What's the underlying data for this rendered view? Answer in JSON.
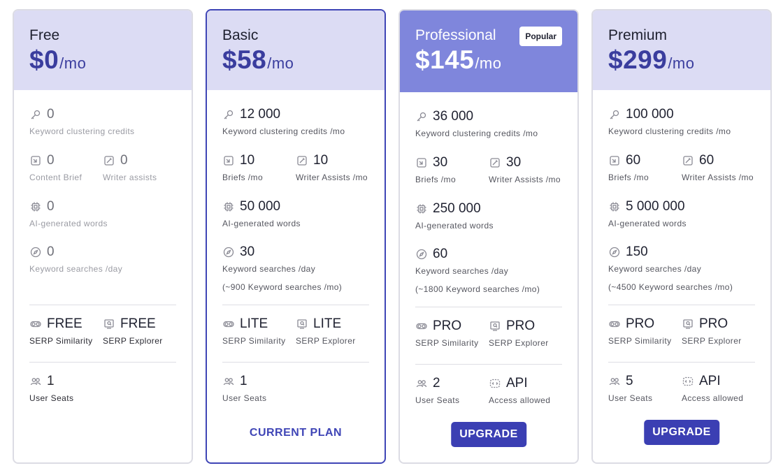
{
  "plans": [
    {
      "name": "Free",
      "price": "$0",
      "per": "/mo",
      "clustering": {
        "value": "0",
        "label": "Keyword clustering credits"
      },
      "briefs": {
        "value": "0",
        "label": "Content Brief"
      },
      "assists": {
        "value": "0",
        "label": "Writer assists"
      },
      "words": {
        "value": "0",
        "label": "AI-generated words"
      },
      "searches": {
        "value": "0",
        "label": "Keyword searches /day"
      },
      "serp_similarity": {
        "value": "FREE",
        "label": "SERP Similarity"
      },
      "serp_explorer": {
        "value": "FREE",
        "label": "SERP Explorer"
      },
      "seats": {
        "value": "1",
        "label": "User Seats"
      }
    },
    {
      "name": "Basic",
      "price": "$58",
      "per": "/mo",
      "clustering": {
        "value": "12 000",
        "label": "Keyword clustering credits /mo"
      },
      "briefs": {
        "value": "10",
        "label": "Briefs /mo"
      },
      "assists": {
        "value": "10",
        "label": "Writer Assists /mo"
      },
      "words": {
        "value": "50 000",
        "label": "AI-generated words"
      },
      "searches": {
        "value": "30",
        "label": "Keyword searches /day",
        "note": "(~900 Keyword searches /mo)"
      },
      "serp_similarity": {
        "value": "LITE",
        "label": "SERP Similarity"
      },
      "serp_explorer": {
        "value": "LITE",
        "label": "SERP Explorer"
      },
      "seats": {
        "value": "1",
        "label": "User Seats"
      },
      "cta": "CURRENT PLAN"
    },
    {
      "name": "Professional",
      "price": "$145",
      "per": "/mo",
      "badge": "Popular",
      "clustering": {
        "value": "36 000",
        "label": "Keyword clustering credits /mo"
      },
      "briefs": {
        "value": "30",
        "label": "Briefs /mo"
      },
      "assists": {
        "value": "30",
        "label": "Writer Assists /mo"
      },
      "words": {
        "value": "250 000",
        "label": "AI-generated words"
      },
      "searches": {
        "value": "60",
        "label": "Keyword searches /day",
        "note": "(~1800 Keyword searches /mo)"
      },
      "serp_similarity": {
        "value": "PRO",
        "label": "SERP Similarity"
      },
      "serp_explorer": {
        "value": "PRO",
        "label": "SERP Explorer"
      },
      "seats": {
        "value": "2",
        "label": "User Seats"
      },
      "api": {
        "value": "API",
        "label": "Access allowed"
      },
      "cta": "UPGRADE"
    },
    {
      "name": "Premium",
      "price": "$299",
      "per": "/mo",
      "clustering": {
        "value": "100 000",
        "label": "Keyword clustering credits /mo"
      },
      "briefs": {
        "value": "60",
        "label": "Briefs /mo"
      },
      "assists": {
        "value": "60",
        "label": "Writer Assists /mo"
      },
      "words": {
        "value": "5 000 000",
        "label": "AI-generated words"
      },
      "searches": {
        "value": "150",
        "label": "Keyword searches /day",
        "note": "(~4500 Keyword searches /mo)"
      },
      "serp_similarity": {
        "value": "PRO",
        "label": "SERP Similarity"
      },
      "serp_explorer": {
        "value": "PRO",
        "label": "SERP Explorer"
      },
      "seats": {
        "value": "5",
        "label": "User Seats"
      },
      "api": {
        "value": "API",
        "label": "Access allowed"
      },
      "cta": "UPGRADE"
    }
  ],
  "colors": {
    "accent": "#3b3fb3",
    "header_light": "#dcdcf4",
    "header_featured": "#7f86dc",
    "card_border": "#dcdce4",
    "current_border": "#3f45b6"
  },
  "icons": {
    "clustering": "key-icon",
    "briefs": "brief-icon",
    "assists": "edit-icon",
    "words": "chip-icon",
    "searches": "compass-icon",
    "serp_similarity": "toggle-icon",
    "serp_explorer": "search-window-icon",
    "seats": "users-icon",
    "api": "api-icon"
  }
}
